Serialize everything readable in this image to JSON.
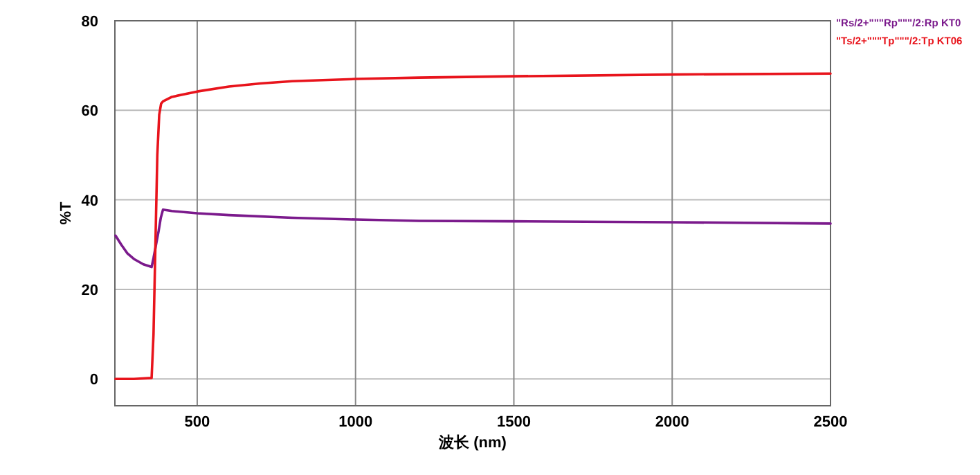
{
  "chart_data": {
    "type": "line",
    "xlabel": "波长 (nm)",
    "ylabel": "%T",
    "xlim": [
      240,
      2500
    ],
    "xticks": [
      500,
      1000,
      1500,
      2000,
      2500
    ],
    "ylim": [
      -6,
      80
    ],
    "yticks": [
      0,
      20,
      40,
      60,
      80
    ],
    "grid": true,
    "legend": "top right",
    "marker": "none",
    "line_style": "solid",
    "series": [
      {
        "name": "\"Rs/2+\"\"\"Rp\"\"\"/2:Rp KT0",
        "color": "#7b1a8c",
        "x": [
          242,
          260,
          280,
          300,
          330,
          356,
          362,
          370,
          378,
          385,
          392,
          420,
          500,
          600,
          800,
          1000,
          1200,
          1500,
          2000,
          2500
        ],
        "values": [
          32,
          30,
          28,
          26.8,
          25.6,
          25,
          27,
          30,
          33,
          36,
          37.8,
          37.5,
          37,
          36.6,
          36,
          35.6,
          35.3,
          35.2,
          35,
          34.7
        ]
      },
      {
        "name": "\"Ts/2+\"\"\"Tp\"\"\"/2:Tp KT06",
        "color": "#e8141c",
        "x": [
          242,
          300,
          356,
          362,
          368,
          374,
          380,
          386,
          392,
          420,
          500,
          600,
          700,
          800,
          1000,
          1200,
          1500,
          2000,
          2500
        ],
        "values": [
          0,
          0,
          0.2,
          10,
          30,
          50,
          59,
          61.5,
          62,
          63,
          64.2,
          65.3,
          66,
          66.5,
          67,
          67.3,
          67.6,
          68,
          68.2
        ]
      }
    ]
  }
}
